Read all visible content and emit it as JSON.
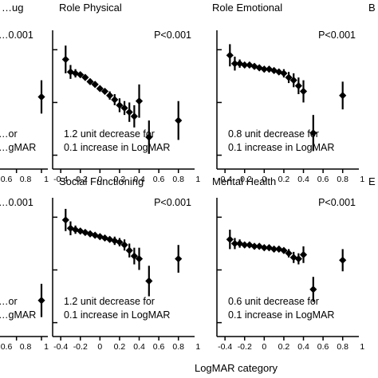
{
  "figure": {
    "xlabel": "LogMAR category",
    "colors": {
      "ink": "#000000",
      "background": "#ffffff"
    }
  },
  "chart_data": [
    {
      "type": "scatter",
      "panel": "left-top",
      "title": "…ug",
      "p_value_label": "…0.001",
      "annotation_lines": [
        "…or",
        "…gMAR"
      ],
      "xlim": [
        -0.4,
        0.8
      ],
      "x_tick_labels": [
        "0.6",
        "0.8",
        "1"
      ],
      "series": [
        {
          "x": [
            0.8
          ],
          "y": [
            0.52
          ]
        }
      ]
    },
    {
      "type": "scatter",
      "panel": "role-physical",
      "title": "Role Physical",
      "p_value_label": "P<0.001",
      "annotation_lines": [
        "1.2 unit decrease for",
        "0.1 increase in LogMAR"
      ],
      "xlim": [
        -0.45,
        0.9
      ],
      "x_tick_labels": [
        "-0.4",
        "-0.2",
        "0",
        "0.2",
        "0.4",
        "0.6",
        "0.8",
        "1"
      ],
      "series": [
        {
          "x": [
            -0.35,
            -0.3,
            -0.25,
            -0.2,
            -0.15,
            -0.1,
            -0.05,
            0.0,
            0.05,
            0.1,
            0.15,
            0.2,
            0.25,
            0.3,
            0.35,
            0.4,
            0.5,
            0.8
          ],
          "y": [
            0.79,
            0.7,
            0.69,
            0.68,
            0.66,
            0.63,
            0.61,
            0.58,
            0.56,
            0.53,
            0.5,
            0.46,
            0.44,
            0.41,
            0.38,
            0.49,
            0.23,
            0.35
          ],
          "err": [
            0.1,
            0.05,
            0.03,
            0.02,
            0.02,
            0.02,
            0.02,
            0.02,
            0.02,
            0.03,
            0.04,
            0.05,
            0.05,
            0.07,
            0.08,
            0.12,
            0.12,
            0.14
          ]
        }
      ]
    },
    {
      "type": "scatter",
      "panel": "role-emotional",
      "title": "Role Emotional",
      "p_value_label": "P<0.001",
      "annotation_lines": [
        "0.8 unit decrease for",
        "0.1 increase in LogMAR"
      ],
      "xlim": [
        -0.45,
        0.9
      ],
      "x_tick_labels": [
        "-0.4",
        "-0.2",
        "0",
        "0.2",
        "0.4",
        "0.6",
        "0.8",
        "1"
      ],
      "series": [
        {
          "x": [
            -0.35,
            -0.3,
            -0.25,
            -0.2,
            -0.15,
            -0.1,
            -0.05,
            0.0,
            0.05,
            0.1,
            0.15,
            0.2,
            0.25,
            0.3,
            0.35,
            0.4,
            0.5,
            0.8
          ],
          "y": [
            0.82,
            0.76,
            0.76,
            0.75,
            0.75,
            0.74,
            0.73,
            0.72,
            0.72,
            0.71,
            0.7,
            0.69,
            0.66,
            0.64,
            0.6,
            0.56,
            0.26,
            0.53
          ],
          "err": [
            0.08,
            0.05,
            0.03,
            0.02,
            0.02,
            0.02,
            0.02,
            0.02,
            0.02,
            0.02,
            0.02,
            0.03,
            0.04,
            0.05,
            0.06,
            0.08,
            0.13,
            0.1
          ]
        }
      ]
    },
    {
      "type": "scatter",
      "panel": "left-bottom",
      "title": "",
      "p_value_label": "…0.001",
      "annotation_lines": [
        "…or",
        "…gMAR"
      ],
      "xlim": [
        -0.4,
        0.8
      ],
      "x_tick_labels": [
        "0.6",
        "0.8",
        "1"
      ],
      "series": [
        {
          "x": [
            0.8
          ],
          "y": [
            0.26
          ]
        }
      ]
    },
    {
      "type": "scatter",
      "panel": "social-functioning",
      "title": "Social Functioning",
      "p_value_label": "P<0.001",
      "annotation_lines": [
        "1.2 unit decrease for",
        "0.1 increase in LogMAR"
      ],
      "xlim": [
        -0.45,
        0.9
      ],
      "x_tick_labels": [
        "-0.4",
        "-0.2",
        "0",
        "0.2",
        "0.4",
        "0.6",
        "0.8",
        "1"
      ],
      "series": [
        {
          "x": [
            -0.35,
            -0.3,
            -0.25,
            -0.2,
            -0.15,
            -0.1,
            -0.05,
            0.0,
            0.05,
            0.1,
            0.15,
            0.2,
            0.25,
            0.3,
            0.35,
            0.4,
            0.5,
            0.8
          ],
          "y": [
            0.84,
            0.78,
            0.77,
            0.76,
            0.75,
            0.74,
            0.73,
            0.72,
            0.71,
            0.7,
            0.69,
            0.68,
            0.66,
            0.62,
            0.58,
            0.56,
            0.4,
            0.56
          ],
          "err": [
            0.08,
            0.05,
            0.03,
            0.02,
            0.02,
            0.02,
            0.02,
            0.02,
            0.02,
            0.02,
            0.03,
            0.03,
            0.04,
            0.05,
            0.06,
            0.08,
            0.11,
            0.1
          ]
        }
      ]
    },
    {
      "type": "scatter",
      "panel": "mental-health",
      "title": "Mental Health",
      "p_value_label": "P<0.001",
      "annotation_lines": [
        "0.6 unit decrease for",
        "0.1 increase in LogMAR"
      ],
      "xlim": [
        -0.45,
        0.9
      ],
      "x_tick_labels": [
        "-0.4",
        "-0.2",
        "0",
        "0.2",
        "0.4",
        "0.6",
        "0.8",
        "1"
      ],
      "series": [
        {
          "x": [
            -0.35,
            -0.3,
            -0.25,
            -0.2,
            -0.15,
            -0.1,
            -0.05,
            0.0,
            0.05,
            0.1,
            0.15,
            0.2,
            0.25,
            0.3,
            0.35,
            0.4,
            0.5,
            0.8
          ],
          "y": [
            0.7,
            0.67,
            0.67,
            0.66,
            0.66,
            0.65,
            0.65,
            0.64,
            0.64,
            0.63,
            0.63,
            0.62,
            0.6,
            0.57,
            0.56,
            0.59,
            0.34,
            0.55
          ],
          "err": [
            0.07,
            0.04,
            0.03,
            0.02,
            0.02,
            0.02,
            0.02,
            0.02,
            0.02,
            0.02,
            0.02,
            0.02,
            0.03,
            0.04,
            0.04,
            0.06,
            0.09,
            0.08
          ]
        }
      ]
    },
    {
      "type": "scatter",
      "panel": "right-top",
      "title": "B",
      "p_value_label": "",
      "annotation_lines": [],
      "xlim": [
        -0.45,
        0.9
      ],
      "x_tick_labels": [],
      "series": [
        {
          "x": [],
          "y": []
        }
      ]
    },
    {
      "type": "scatter",
      "panel": "right-bottom",
      "title": "E",
      "p_value_label": "",
      "annotation_lines": [],
      "xlim": [
        -0.45,
        0.9
      ],
      "x_tick_labels": [],
      "series": [
        {
          "x": [],
          "y": []
        }
      ]
    }
  ]
}
